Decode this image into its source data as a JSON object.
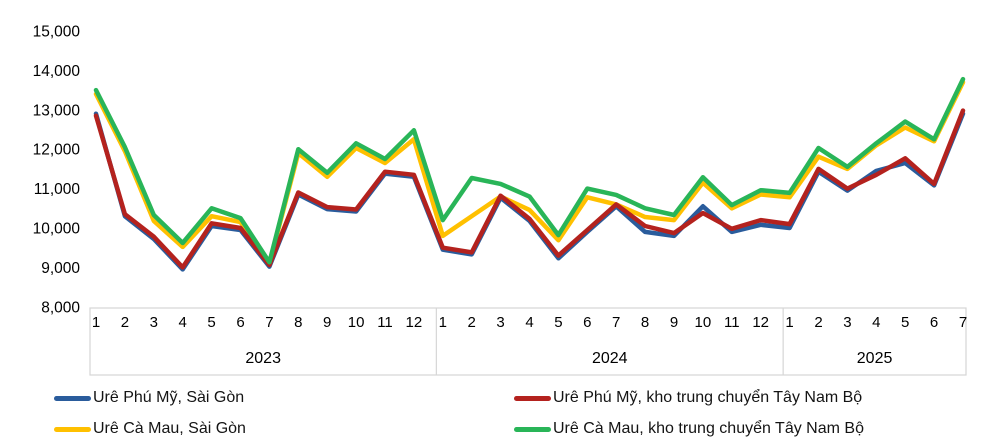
{
  "chart_data": {
    "type": "line",
    "title": "",
    "grid": false,
    "legend_position": "bottom",
    "y_axis": {
      "min": 8000,
      "max": 15000,
      "step": 1000,
      "tick_labels": [
        "15,000",
        "14,000",
        "13,000",
        "12,000",
        "11,000",
        "10,000",
        "9,000",
        "8,000"
      ]
    },
    "x_axis": {
      "years": [
        {
          "label": "2023",
          "months": [
            "1",
            "2",
            "3",
            "4",
            "5",
            "6",
            "7",
            "8",
            "9",
            "10",
            "11",
            "12"
          ]
        },
        {
          "label": "2024",
          "months": [
            "1",
            "2",
            "3",
            "4",
            "5",
            "6",
            "7",
            "8",
            "9",
            "10",
            "11",
            "12"
          ]
        },
        {
          "label": "2025",
          "months": [
            "1",
            "2",
            "3",
            "4",
            "5",
            "6",
            "7"
          ]
        }
      ]
    },
    "series": [
      {
        "name": "Urê Phú Mỹ, Sài Gòn",
        "color": "#2A5C9C",
        "values": [
          12900,
          10300,
          9720,
          8950,
          10050,
          9950,
          9020,
          10850,
          10480,
          10420,
          11380,
          11300,
          9450,
          9330,
          10770,
          10180,
          9230,
          9900,
          10550,
          9900,
          9800,
          10550,
          9900,
          10080,
          10000,
          11430,
          10950,
          11450,
          11650,
          11080,
          12900
        ]
      },
      {
        "name": "Urê Phú Mỹ, kho trung chuyển Tây Nam Bộ",
        "color": "#B4221E",
        "values": [
          12850,
          10350,
          9780,
          9000,
          10120,
          10000,
          9060,
          10900,
          10530,
          10470,
          11430,
          11350,
          9500,
          9380,
          10820,
          10230,
          9300,
          9950,
          10600,
          10050,
          9870,
          10380,
          9980,
          10200,
          10100,
          11500,
          11000,
          11350,
          11770,
          11120,
          12980
        ]
      },
      {
        "name": "Urê Cà Mau, Sài Gòn",
        "color": "#FFC000",
        "values": [
          13400,
          11950,
          10180,
          9520,
          10300,
          10150,
          9100,
          11900,
          11300,
          12030,
          11650,
          12250,
          9800,
          10300,
          10800,
          10460,
          9690,
          10780,
          10600,
          10280,
          10200,
          11150,
          10500,
          10850,
          10780,
          11810,
          11500,
          12100,
          12550,
          12200,
          13700
        ]
      },
      {
        "name": "Urê Cà Mau, kho trung chuyển Tây Nam Bộ",
        "color": "#29B558",
        "values": [
          13500,
          12050,
          10330,
          9620,
          10500,
          10250,
          9130,
          12000,
          11400,
          12150,
          11750,
          12480,
          10200,
          11270,
          11120,
          10800,
          9820,
          11000,
          10840,
          10500,
          10330,
          11290,
          10580,
          10960,
          10890,
          12030,
          11550,
          12150,
          12700,
          12250,
          13780
        ]
      }
    ]
  },
  "legend": {
    "items": [
      {
        "label": "Urê Phú Mỹ, Sài Gòn"
      },
      {
        "label": "Urê Phú Mỹ, kho trung chuyển Tây Nam Bộ"
      },
      {
        "label": "Urê Cà Mau, Sài Gòn"
      },
      {
        "label": "Urê Cà Mau, kho trung chuyển Tây Nam Bộ"
      }
    ]
  }
}
